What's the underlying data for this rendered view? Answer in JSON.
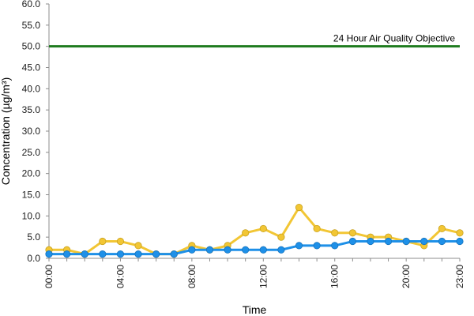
{
  "chart_data": {
    "type": "line",
    "xlabel": "Time",
    "ylabel": "Concentration (µg/m³)",
    "x": [
      "00:00",
      "01:00",
      "02:00",
      "03:00",
      "04:00",
      "05:00",
      "06:00",
      "07:00",
      "08:00",
      "09:00",
      "10:00",
      "11:00",
      "12:00",
      "13:00",
      "14:00",
      "15:00",
      "16:00",
      "17:00",
      "18:00",
      "19:00",
      "20:00",
      "21:00",
      "22:00",
      "23:00"
    ],
    "x_tick_labels": [
      "00:00",
      "04:00",
      "08:00",
      "12:00",
      "16:00",
      "20:00",
      "23:00"
    ],
    "ylim": [
      0,
      60
    ],
    "y_tick_labels": [
      "0.0",
      "5.0",
      "10.0",
      "15.0",
      "20.0",
      "25.0",
      "30.0",
      "35.0",
      "40.0",
      "45.0",
      "50.0",
      "55.0",
      "60.0"
    ],
    "grid": false,
    "series": [
      {
        "color": "#F2C634",
        "values": [
          2,
          2,
          1,
          4,
          4,
          3,
          1,
          1,
          3,
          2,
          3,
          6,
          7,
          5,
          12,
          7,
          6,
          6,
          5,
          5,
          4,
          3,
          7,
          6
        ]
      },
      {
        "color": "#1E90E8",
        "values": [
          1,
          1,
          1,
          1,
          1,
          1,
          1,
          1,
          2,
          2,
          2,
          2,
          2,
          2,
          3,
          3,
          3,
          4,
          4,
          4,
          4,
          4,
          4,
          4
        ]
      }
    ],
    "reference_line": {
      "value": 50,
      "label": "24 Hour Air Quality Objective",
      "color": "#1E7B1E"
    }
  }
}
